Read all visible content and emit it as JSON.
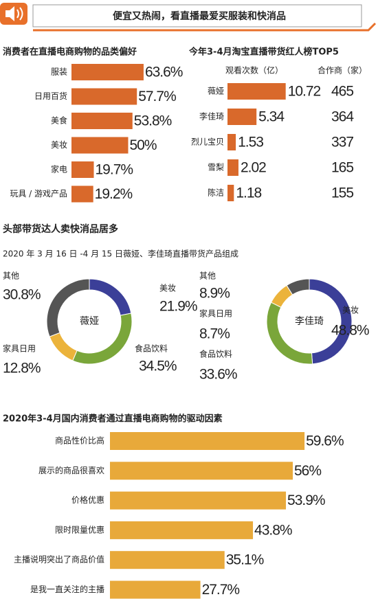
{
  "header": {
    "title": "便宜又热闹，看直播最爱买服装和快消品"
  },
  "section": {
    "title": "头部带货达人卖快消品居多",
    "subtitle": "2020 年 3 月 16 日 -4 月 15 日薇娅、李佳琦直播带货产品组成"
  },
  "chart_data": [
    {
      "type": "bar",
      "title": "消费者在直播电商购物的品类偏好",
      "categories": [
        "服装",
        "日用百货",
        "美食",
        "美妆",
        "家电",
        "玩具 / 游戏产品"
      ],
      "values": [
        63.6,
        57.7,
        53.8,
        50,
        19.7,
        19.2
      ],
      "value_labels": [
        "63.6%",
        "57.7%",
        "53.8%",
        "50%",
        "19.7%",
        "19.2%"
      ],
      "color": "#d9692b"
    },
    {
      "type": "ranking",
      "title": "今年3-4月淘宝直播带货红人榜TOP5",
      "categories": [
        "薇娅",
        "李佳琦",
        "烈儿宝贝",
        "雪梨",
        "陈洁"
      ],
      "series": [
        {
          "name": "观看次数（亿）",
          "color": "#d9692b",
          "values": [
            10.72,
            5.34,
            1.53,
            2.02,
            1.18
          ]
        },
        {
          "name": "合作商（家）",
          "color": "#2e2f6e",
          "values": [
            465,
            364,
            337,
            165,
            155
          ]
        }
      ]
    },
    {
      "type": "donut",
      "title": "薇娅",
      "categories": [
        "美妆",
        "食品饮料",
        "家具日用",
        "其他"
      ],
      "values": [
        21.9,
        34.5,
        12.8,
        30.8
      ],
      "value_labels": [
        "21.9%",
        "34.5%",
        "12.8%",
        "30.8%"
      ],
      "colors": [
        "#3b3f98",
        "#7aa63a",
        "#ebb33b",
        "#555555"
      ],
      "label_colors": [
        "#3b3f98",
        "#7aa63a",
        "#ebb33b",
        "#555555"
      ]
    },
    {
      "type": "donut",
      "title": "李佳琦",
      "categories": [
        "美妆",
        "食品饮料",
        "家具日用",
        "其他"
      ],
      "values": [
        48.8,
        33.6,
        8.7,
        8.9
      ],
      "value_labels": [
        "48.8%",
        "33.6%",
        "8.7%",
        "8.9%"
      ],
      "colors": [
        "#3b3f98",
        "#7aa63a",
        "#ebb33b",
        "#555555"
      ],
      "label_colors": [
        "#3b3f98",
        "#7aa63a",
        "#ebb33b",
        "#555555"
      ]
    },
    {
      "type": "bar",
      "title": "2020年3-4月国内消费者通过直播电商购物的驱动因素",
      "categories": [
        "商品性价比高",
        "展示的商品很喜欢",
        "价格优惠",
        "限时限量优惠",
        "主播说明突出了商品价值",
        "是我一直关注的主播"
      ],
      "values": [
        59.6,
        56,
        53.9,
        43.8,
        35.1,
        27.7
      ],
      "value_labels": [
        "59.6%",
        "56%",
        "53.9%",
        "43.8%",
        "35.1%",
        "27.7%"
      ],
      "color": "#e8a93a"
    }
  ]
}
